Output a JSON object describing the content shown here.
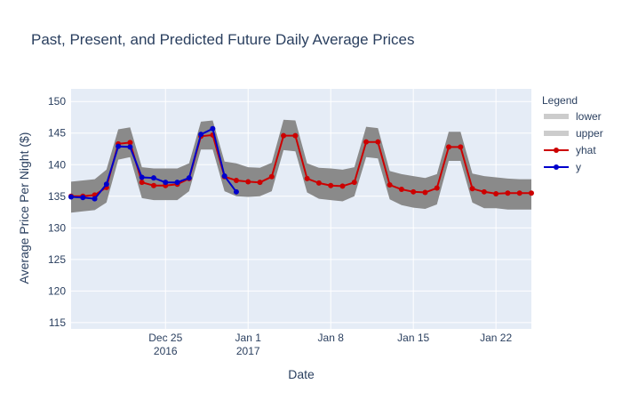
{
  "chart_data": {
    "type": "line",
    "title": "Past, Present, and Predicted Future Daily Average Prices",
    "xlabel": "Date",
    "ylabel": "Average Price Per Night ($)",
    "ylim": [
      114,
      152
    ],
    "xlim": [
      "2016-12-17",
      "2017-01-25"
    ],
    "yticks": [
      115,
      120,
      125,
      130,
      135,
      140,
      145,
      150
    ],
    "xticks": [
      {
        "date": "2016-12-25",
        "line1": "Dec 25",
        "line2": "2016"
      },
      {
        "date": "2017-01-01",
        "line1": "Jan 1",
        "line2": "2017"
      },
      {
        "date": "2017-01-08",
        "line1": "Jan 8",
        "line2": ""
      },
      {
        "date": "2017-01-15",
        "line1": "Jan 15",
        "line2": ""
      },
      {
        "date": "2017-01-22",
        "line1": "Jan 22",
        "line2": ""
      }
    ],
    "legend_title": "Legend",
    "legend_position": "right",
    "grid": true,
    "colors": {
      "plot_bg": "#e5ecf6",
      "band_fill": "#8a8a8a",
      "band_legend": "#cccccc",
      "yhat": "#cc0000",
      "y": "#0000cc",
      "grid": "#ffffff",
      "text": "#2a3f5f"
    },
    "series": [
      {
        "name": "lower",
        "x": [
          "2016-12-17",
          "2016-12-18",
          "2016-12-19",
          "2016-12-20",
          "2016-12-21",
          "2016-12-22",
          "2016-12-23",
          "2016-12-24",
          "2016-12-25",
          "2016-12-26",
          "2016-12-27",
          "2016-12-28",
          "2016-12-29",
          "2016-12-30",
          "2016-12-31",
          "2017-01-01",
          "2017-01-02",
          "2017-01-03",
          "2017-01-04",
          "2017-01-05",
          "2017-01-06",
          "2017-01-07",
          "2017-01-08",
          "2017-01-09",
          "2017-01-10",
          "2017-01-11",
          "2017-01-12",
          "2017-01-13",
          "2017-01-14",
          "2017-01-15",
          "2017-01-16",
          "2017-01-17",
          "2017-01-18",
          "2017-01-19",
          "2017-01-20",
          "2017-01-21",
          "2017-01-22",
          "2017-01-23",
          "2017-01-24",
          "2017-01-25"
        ],
        "values": [
          132.4,
          132.6,
          132.8,
          134.0,
          140.8,
          141.2,
          134.7,
          134.4,
          134.4,
          134.4,
          135.8,
          142.4,
          142.4,
          135.8,
          135.0,
          134.9,
          135.0,
          135.8,
          142.3,
          142.1,
          135.6,
          134.6,
          134.4,
          134.2,
          135.0,
          141.2,
          141.0,
          134.5,
          133.6,
          133.2,
          133.0,
          133.7,
          140.6,
          140.6,
          134.0,
          133.1,
          133.1,
          132.9,
          132.9,
          132.9
        ]
      },
      {
        "name": "upper",
        "x": [
          "2016-12-17",
          "2016-12-18",
          "2016-12-19",
          "2016-12-20",
          "2016-12-21",
          "2016-12-22",
          "2016-12-23",
          "2016-12-24",
          "2016-12-25",
          "2016-12-26",
          "2016-12-27",
          "2016-12-28",
          "2016-12-29",
          "2016-12-30",
          "2016-12-31",
          "2017-01-01",
          "2017-01-02",
          "2017-01-03",
          "2017-01-04",
          "2017-01-05",
          "2017-01-06",
          "2017-01-07",
          "2017-01-08",
          "2017-01-09",
          "2017-01-10",
          "2017-01-11",
          "2017-01-12",
          "2017-01-13",
          "2017-01-14",
          "2017-01-15",
          "2017-01-16",
          "2017-01-17",
          "2017-01-18",
          "2017-01-19",
          "2017-01-20",
          "2017-01-21",
          "2017-01-22",
          "2017-01-23",
          "2017-01-24",
          "2017-01-25"
        ],
        "values": [
          137.3,
          137.5,
          137.7,
          139.2,
          145.6,
          145.9,
          139.6,
          139.4,
          139.4,
          139.4,
          140.2,
          146.8,
          147.0,
          140.5,
          140.2,
          139.6,
          139.5,
          140.3,
          147.1,
          147.0,
          140.2,
          139.5,
          139.4,
          139.2,
          139.6,
          146.0,
          145.8,
          139.0,
          138.5,
          138.2,
          137.9,
          138.5,
          145.2,
          145.2,
          138.6,
          138.2,
          138.0,
          137.8,
          137.7,
          137.7
        ]
      },
      {
        "name": "yhat",
        "x": [
          "2016-12-17",
          "2016-12-18",
          "2016-12-19",
          "2016-12-20",
          "2016-12-21",
          "2016-12-22",
          "2016-12-23",
          "2016-12-24",
          "2016-12-25",
          "2016-12-26",
          "2016-12-27",
          "2016-12-28",
          "2016-12-29",
          "2016-12-30",
          "2016-12-31",
          "2017-01-01",
          "2017-01-02",
          "2017-01-03",
          "2017-01-04",
          "2017-01-05",
          "2017-01-06",
          "2017-01-07",
          "2017-01-08",
          "2017-01-09",
          "2017-01-10",
          "2017-01-11",
          "2017-01-12",
          "2017-01-13",
          "2017-01-14",
          "2017-01-15",
          "2017-01-16",
          "2017-01-17",
          "2017-01-18",
          "2017-01-19",
          "2017-01-20",
          "2017-01-21",
          "2017-01-22",
          "2017-01-23",
          "2017-01-24",
          "2017-01-25"
        ],
        "values": [
          135.0,
          135.0,
          135.2,
          136.4,
          143.3,
          143.5,
          137.2,
          136.7,
          136.7,
          136.9,
          137.8,
          144.5,
          144.7,
          138.1,
          137.5,
          137.3,
          137.2,
          138.1,
          144.6,
          144.6,
          137.8,
          137.1,
          136.7,
          136.6,
          137.2,
          143.6,
          143.6,
          136.8,
          136.1,
          135.7,
          135.6,
          136.3,
          142.8,
          142.8,
          136.2,
          135.7,
          135.4,
          135.5,
          135.5,
          135.5
        ]
      },
      {
        "name": "y",
        "x": [
          "2016-12-17",
          "2016-12-18",
          "2016-12-19",
          "2016-12-20",
          "2016-12-21",
          "2016-12-22",
          "2016-12-23",
          "2016-12-24",
          "2016-12-25",
          "2016-12-26",
          "2016-12-27",
          "2016-12-28",
          "2016-12-29",
          "2016-12-30",
          "2016-12-31",
          "2017-01-01",
          "2017-01-02",
          "2017-01-03"
        ],
        "values": [
          134.9,
          134.8,
          134.6,
          136.9,
          142.9,
          142.8,
          138.0,
          137.9,
          137.2,
          137.2,
          137.9,
          144.8,
          145.7,
          138.2,
          135.7,
          null,
          null,
          null
        ]
      }
    ]
  }
}
